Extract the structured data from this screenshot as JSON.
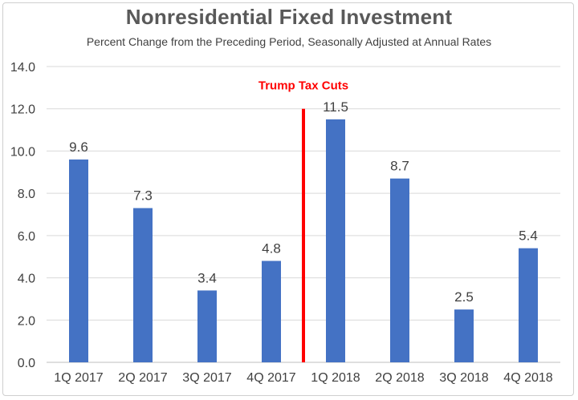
{
  "chart_data": {
    "type": "bar",
    "title": "Nonresidential Fixed Investment",
    "subtitle": "Percent Change from the Preceding Period, Seasonally Adjusted at Annual Rates",
    "categories": [
      "1Q 2017",
      "2Q 2017",
      "3Q 2017",
      "4Q 2017",
      "1Q 2018",
      "2Q 2018",
      "3Q 2018",
      "4Q 2018"
    ],
    "values": [
      9.6,
      7.3,
      3.4,
      4.8,
      11.5,
      8.7,
      2.5,
      5.4
    ],
    "data_labels": [
      "9.6",
      "7.3",
      "3.4",
      "4.8",
      "11.5",
      "8.7",
      "2.5",
      "5.4"
    ],
    "ylim": [
      0,
      14
    ],
    "y_ticks": [
      "0.0",
      "2.0",
      "4.0",
      "6.0",
      "8.0",
      "10.0",
      "12.0",
      "14.0"
    ],
    "grid": true,
    "bar_color": "#4472C4",
    "grid_color": "#d9d9d9",
    "annotation": {
      "text": "Trump Tax Cuts",
      "color": "#FF0000",
      "between_categories": [
        "4Q 2017",
        "1Q 2018"
      ],
      "line_top_value": 12
    }
  }
}
